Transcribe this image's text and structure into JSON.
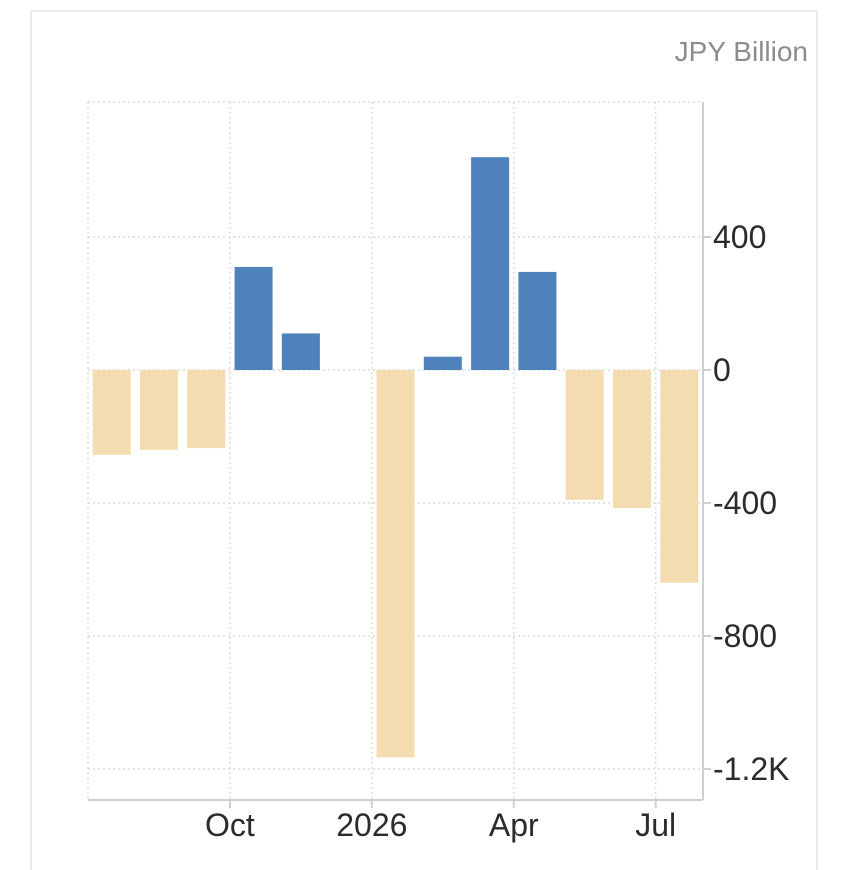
{
  "unit_label": "JPY Billion",
  "colors": {
    "positive": "#4f81bd",
    "negative": "#f3dcb0",
    "grid": "#dcdcdc",
    "axis": "#cfcfcf"
  },
  "chart_data": {
    "type": "bar",
    "title": "",
    "xlabel": "",
    "ylabel": "JPY Billion",
    "categories": [
      "2025-07",
      "2025-08",
      "2025-09",
      "2025-10",
      "2025-11",
      "2025-12",
      "2026-01",
      "2026-02",
      "2026-03",
      "2026-04",
      "2026-05",
      "2026-06",
      "2026-07"
    ],
    "values": [
      -255,
      -240,
      -235,
      310,
      110,
      0,
      -1165,
      40,
      640,
      295,
      -390,
      -415,
      -640
    ],
    "ylim": [
      -1300,
      800
    ],
    "yticks": [
      400,
      0,
      -400,
      -800,
      -1200
    ],
    "ytick_labels": [
      "400",
      "0",
      "-400",
      "-800",
      "-1.2K"
    ],
    "xticks": [
      {
        "label": "Oct",
        "index": 2.5
      },
      {
        "label": "2026",
        "index": 5.5
      },
      {
        "label": "Apr",
        "index": 8.5
      },
      {
        "label": "Jul",
        "index": 11.5
      }
    ],
    "grid": true,
    "y_axis_side": "right"
  }
}
